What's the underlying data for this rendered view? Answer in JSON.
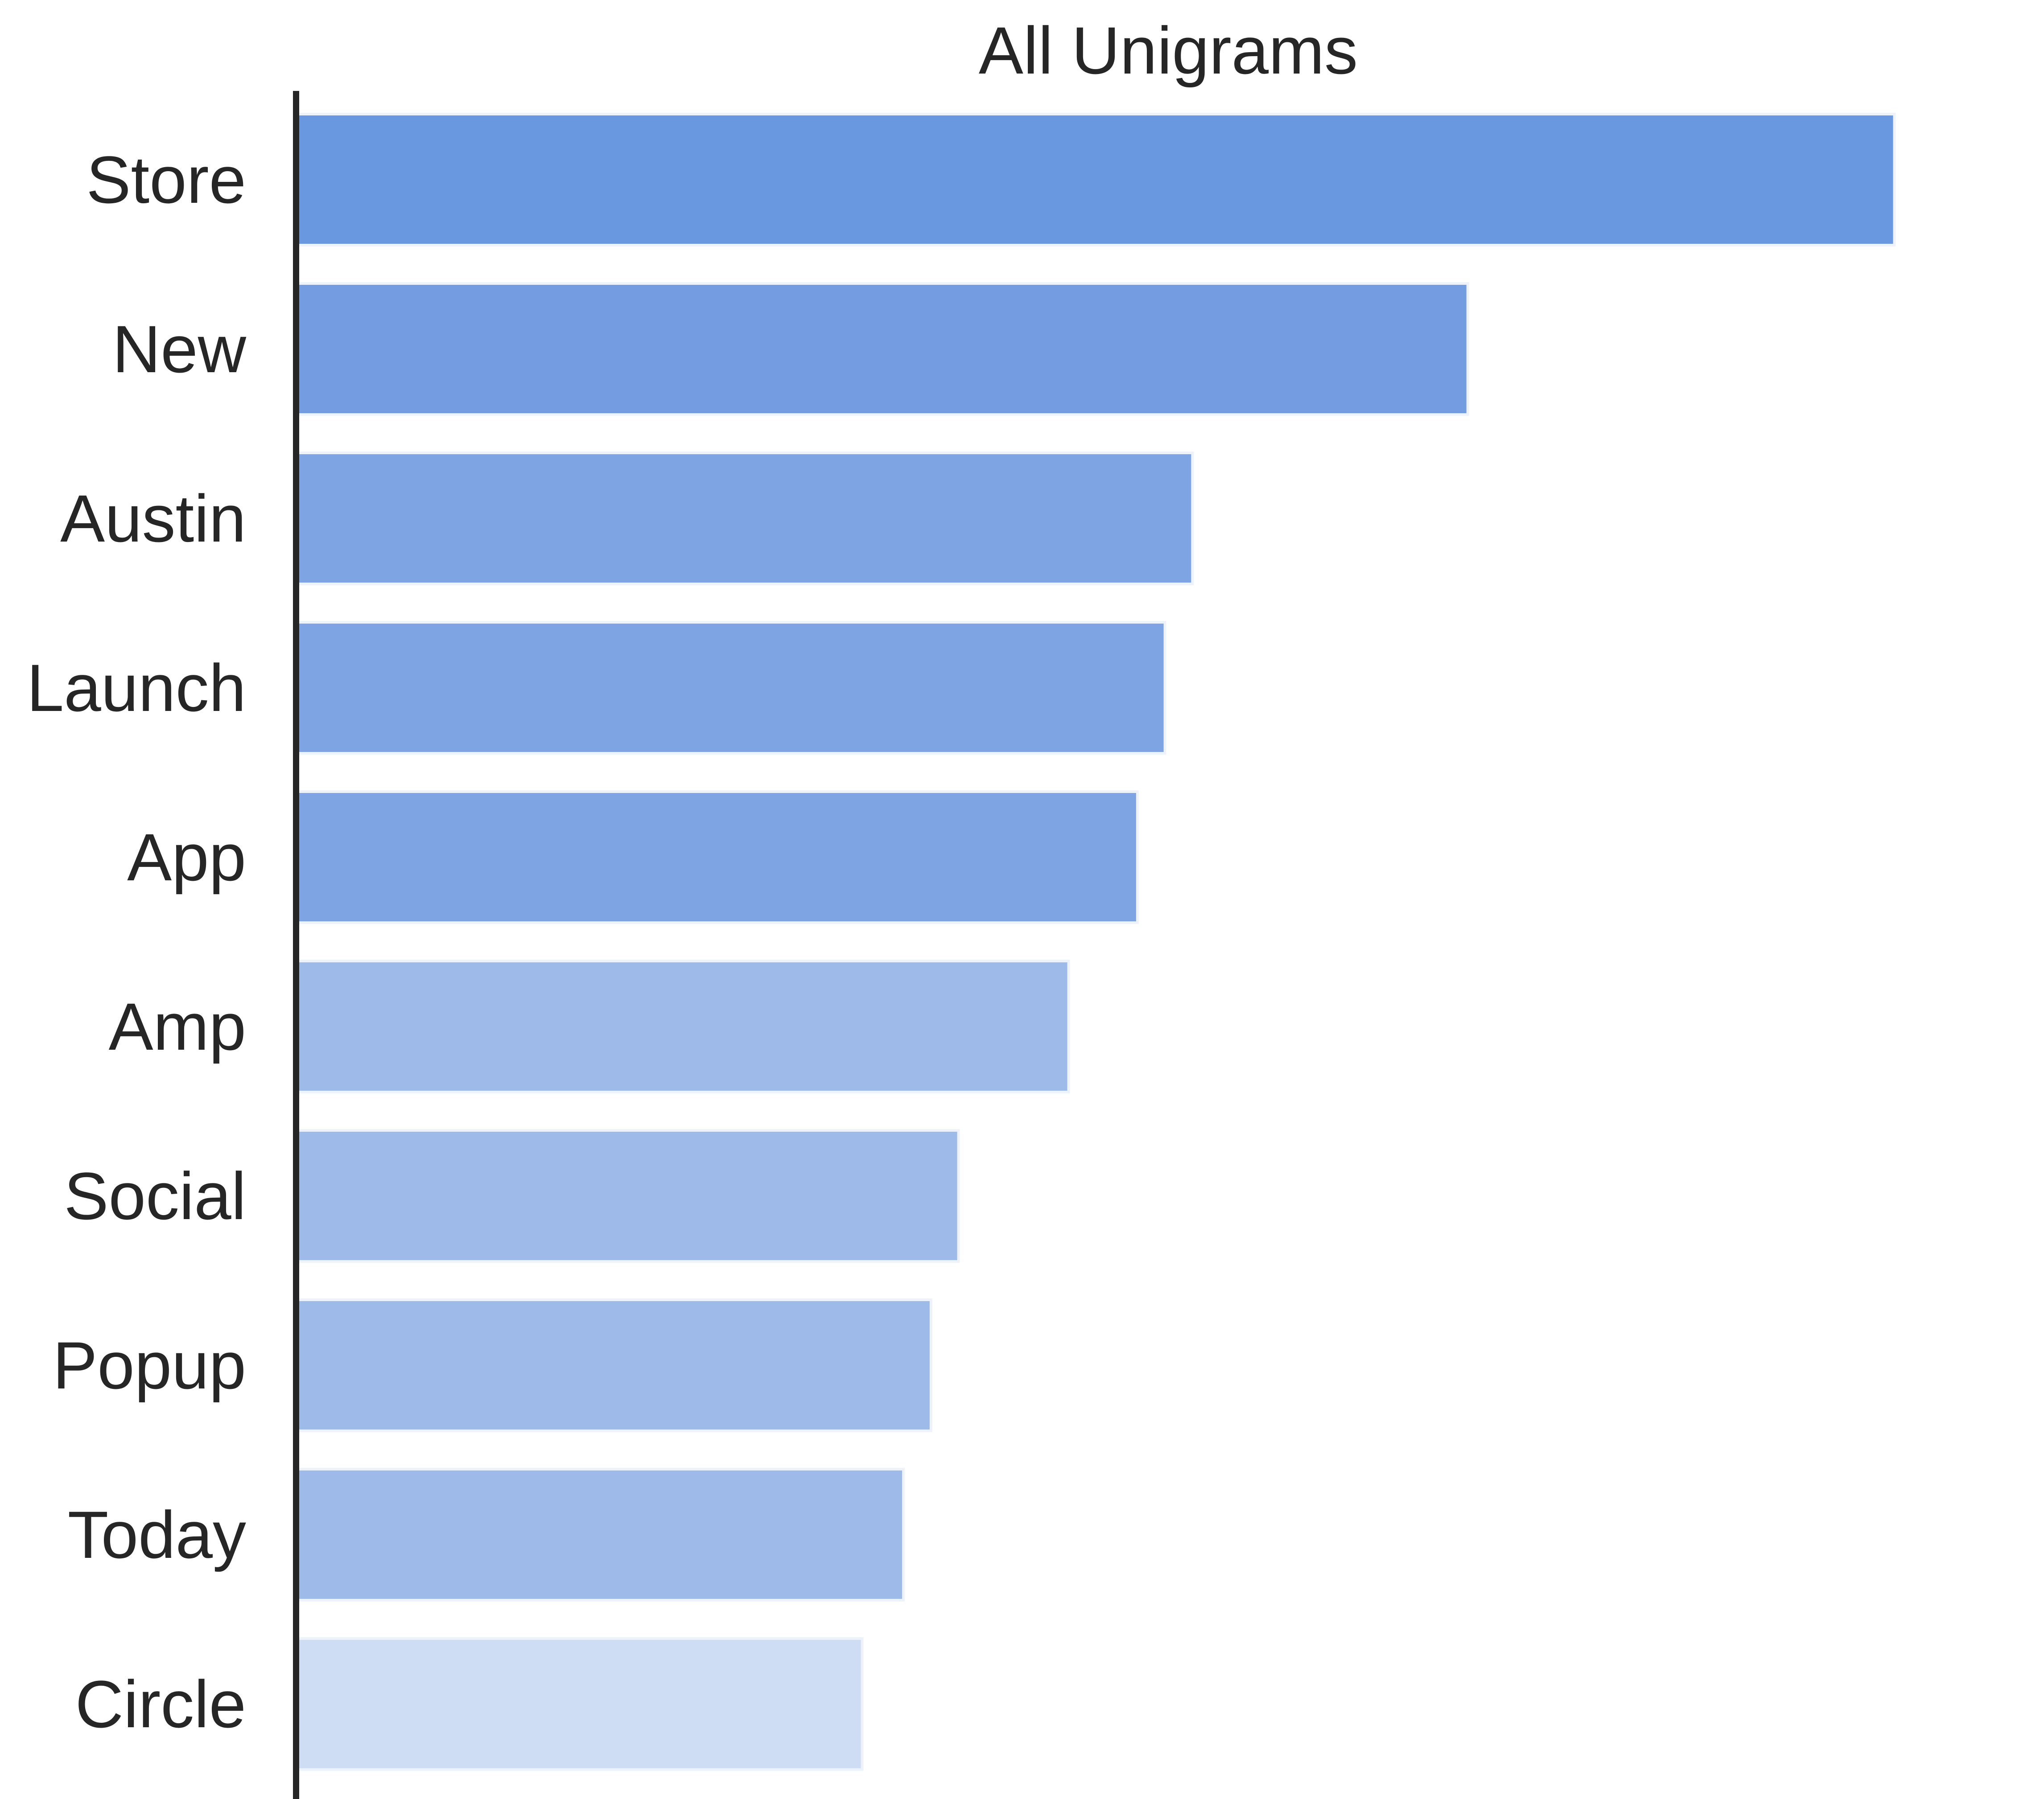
{
  "chart_data": {
    "type": "bar",
    "orientation": "horizontal",
    "title": "All Unigrams",
    "xlabel": "",
    "ylabel": "",
    "categories": [
      "Store",
      "New",
      "Austin",
      "Launch",
      "App",
      "Amp",
      "Social",
      "Popup",
      "Today",
      "Circle"
    ],
    "values": [
      58,
      42.5,
      32.5,
      31.5,
      30.5,
      28,
      24,
      23,
      22,
      20.5
    ],
    "xlim": [
      0,
      60
    ],
    "x_axis_visible": false,
    "grid": false,
    "legend": "none",
    "colors": [
      "#6a98e0",
      "#749de1",
      "#7fa4e3",
      "#7fa4e3",
      "#7fa4e3",
      "#9dbae8",
      "#9dbae8",
      "#9dbae8",
      "#9dbae8",
      "#cfddf4"
    ],
    "bar_edge_color": "#eef2fb",
    "axis_color": "#262626"
  }
}
